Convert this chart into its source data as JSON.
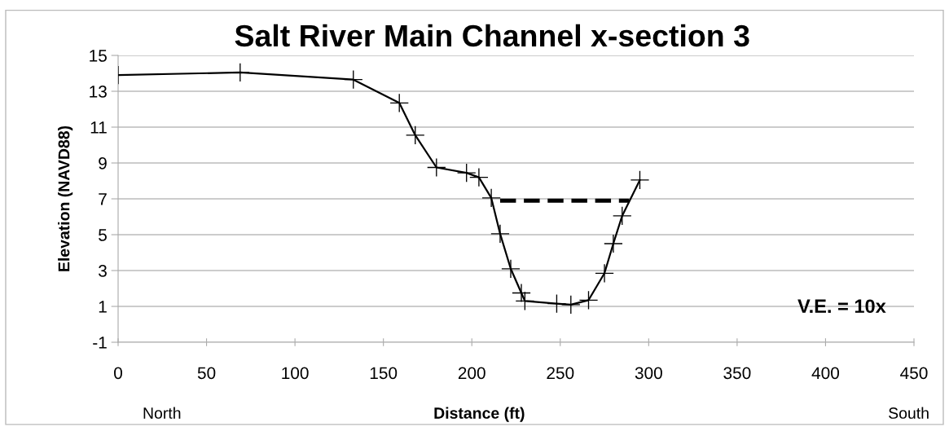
{
  "chart_data": {
    "type": "line",
    "title": "Salt River Main Channel x-section 3",
    "xlabel": "Distance (ft)",
    "ylabel": "Elevation (NAVD88)",
    "series": [
      {
        "color": "#000000",
        "x": [
          0,
          69,
          133,
          159,
          168,
          180,
          197,
          204,
          211,
          216,
          222,
          228,
          230,
          248,
          256,
          266,
          275,
          280,
          285,
          295
        ],
        "values": [
          13.9,
          14.05,
          13.65,
          12.35,
          10.55,
          8.75,
          8.45,
          8.2,
          7.05,
          5.05,
          3.1,
          1.75,
          1.3,
          1.15,
          1.1,
          1.35,
          2.85,
          4.5,
          6.05,
          8.05
        ]
      },
      {
        "color": "#000000",
        "marker": "none",
        "line_style": "dashed",
        "x": [
          216,
          289
        ],
        "values": [
          6.9,
          6.9
        ]
      }
    ],
    "xlim": [
      0,
      450
    ],
    "xticks": [
      0,
      50,
      100,
      150,
      200,
      250,
      300,
      350,
      400,
      450
    ],
    "ylim": [
      -1,
      15
    ],
    "yticks": [
      -1,
      1,
      3,
      5,
      7,
      9,
      11,
      13,
      15
    ],
    "grid": "y",
    "legend": false,
    "marker": "cross",
    "line_style": "solid",
    "annotations": [
      "North",
      "South",
      "V.E. = 10x"
    ]
  }
}
